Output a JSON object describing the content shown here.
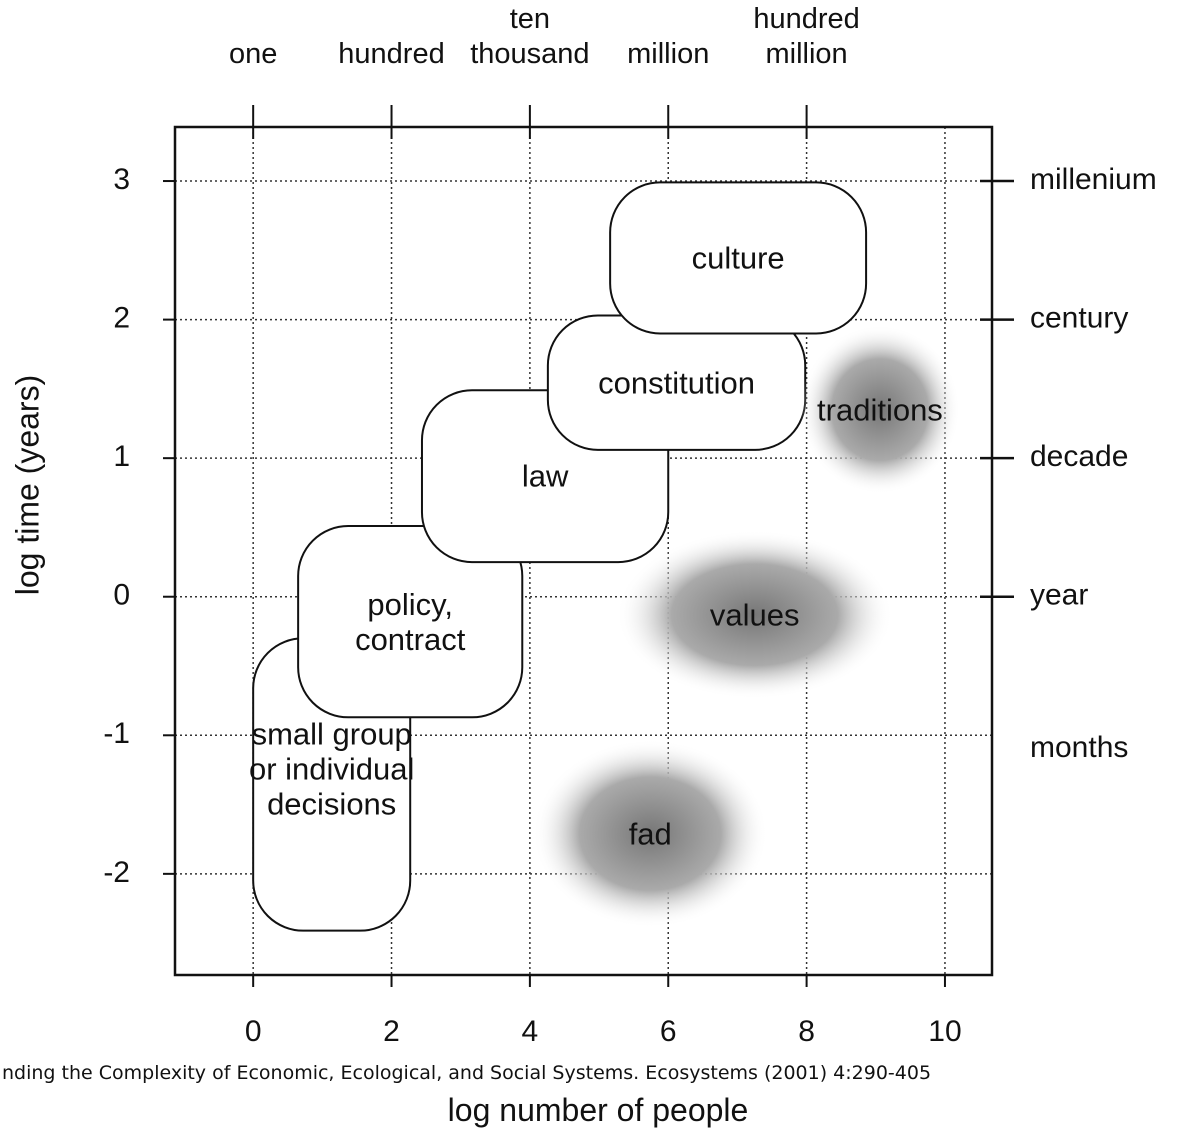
{
  "chart_data": {
    "type": "region",
    "xlabel": "log number of people",
    "ylabel": "log time (years)",
    "caption": "nding the Complexity of Economic, Ecological, and Social Systems.  Ecosystems (2001) 4:290-405",
    "xlim": [
      -1.13,
      10.68
    ],
    "ylim": [
      -2.73,
      3.39
    ],
    "xticks": [
      0,
      2,
      4,
      6,
      8,
      10
    ],
    "yticks": [
      -2,
      -1,
      0,
      1,
      2,
      3
    ],
    "x2ticks": [
      {
        "value": 0,
        "label": "one"
      },
      {
        "value": 2,
        "label": "hundred"
      },
      {
        "value": 4,
        "label": "ten\nthousand"
      },
      {
        "value": 6,
        "label": "million"
      },
      {
        "value": 8,
        "label": "hundred\nmillion"
      }
    ],
    "y2ticks": [
      {
        "value": 3,
        "label": "millenium"
      },
      {
        "value": 2,
        "label": "century"
      },
      {
        "value": 1,
        "label": "decade"
      },
      {
        "value": 0,
        "label": "year"
      },
      {
        "value": -1.1,
        "label": "months"
      }
    ],
    "grid": true,
    "regions": [
      {
        "label": "small group\nor individual\ndecisions",
        "shape": "box",
        "x": [
          0,
          2.27
        ],
        "y": [
          -2.41,
          -0.3
        ]
      },
      {
        "label": "policy,\ncontract",
        "shape": "box",
        "x": [
          0.65,
          3.89
        ],
        "y": [
          -0.87,
          0.51
        ]
      },
      {
        "label": "law",
        "shape": "box",
        "x": [
          2.44,
          6.0
        ],
        "y": [
          0.25,
          1.49
        ]
      },
      {
        "label": "constitution",
        "shape": "box",
        "x": [
          4.26,
          7.98
        ],
        "y": [
          1.06,
          2.03
        ]
      },
      {
        "label": "culture",
        "shape": "box",
        "x": [
          5.16,
          8.86
        ],
        "y": [
          1.9,
          2.99
        ]
      },
      {
        "label": "traditions",
        "shape": "cloud",
        "x": [
          7.9,
          10.22
        ],
        "y": [
          0.74,
          1.96
        ]
      },
      {
        "label": "values",
        "shape": "cloud",
        "x": [
          5.25,
          9.25
        ],
        "y": [
          -0.74,
          0.48
        ]
      },
      {
        "label": "fad",
        "shape": "cloud",
        "x": [
          4.04,
          7.44
        ],
        "y": [
          -2.39,
          -1.03
        ]
      }
    ]
  }
}
